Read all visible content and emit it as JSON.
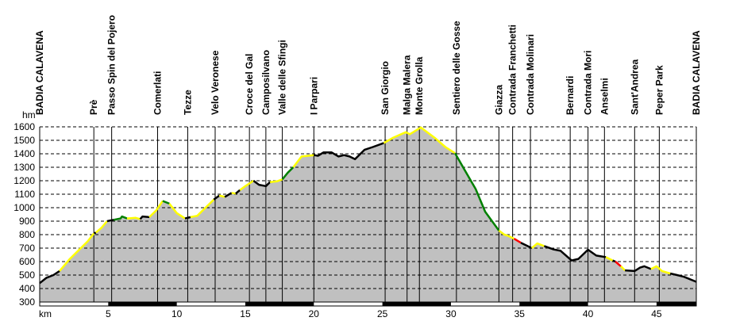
{
  "chart_data": {
    "type": "area",
    "title": "",
    "xlabel": "km",
    "ylabel": "hm",
    "xlim": [
      0,
      47.9
    ],
    "ylim": [
      300,
      1600
    ],
    "grid": true,
    "y_ticks": [
      300,
      400,
      500,
      600,
      700,
      800,
      900,
      1000,
      1100,
      1200,
      1300,
      1400,
      1500,
      1600
    ],
    "x_ticks": [
      5,
      10,
      15,
      20,
      25,
      30,
      35,
      40,
      45
    ],
    "scale_bar_black_ranges": [
      [
        5,
        10
      ],
      [
        15,
        20
      ],
      [
        25,
        30
      ],
      [
        35,
        40
      ],
      [
        45,
        47.9
      ]
    ],
    "colors": {
      "fill": "#c0c0c0",
      "yellow": "#ffff00",
      "green": "#008000",
      "black": "#000000",
      "red": "#ff0000"
    },
    "segments": [
      {
        "color": "black",
        "points": [
          [
            0,
            440
          ],
          [
            0.5,
            480
          ],
          [
            1.0,
            500
          ],
          [
            1.45,
            530
          ]
        ]
      },
      {
        "color": "yellow",
        "points": [
          [
            1.45,
            530
          ],
          [
            2.2,
            620
          ],
          [
            2.9,
            690
          ],
          [
            3.5,
            750
          ],
          [
            3.96,
            810
          ]
        ]
      },
      {
        "color": "black",
        "points": [
          [
            3.96,
            810
          ],
          [
            4.1,
            815
          ]
        ]
      },
      {
        "color": "yellow",
        "points": [
          [
            4.1,
            815
          ],
          [
            4.5,
            850
          ],
          [
            4.92,
            900
          ]
        ]
      },
      {
        "color": "black",
        "points": [
          [
            4.92,
            900
          ],
          [
            5.4,
            910
          ]
        ]
      },
      {
        "color": "green",
        "points": [
          [
            5.4,
            910
          ],
          [
            5.9,
            920
          ],
          [
            6.0,
            935
          ],
          [
            6.37,
            920
          ]
        ]
      },
      {
        "color": "yellow",
        "points": [
          [
            6.37,
            920
          ],
          [
            7.0,
            925
          ],
          [
            7.33,
            915
          ]
        ]
      },
      {
        "color": "black",
        "points": [
          [
            7.33,
            915
          ],
          [
            7.5,
            935
          ],
          [
            8.0,
            930
          ]
        ]
      },
      {
        "color": "yellow",
        "points": [
          [
            8.0,
            930
          ],
          [
            8.5,
            980
          ],
          [
            8.97,
            1050
          ]
        ]
      },
      {
        "color": "green",
        "points": [
          [
            8.97,
            1050
          ],
          [
            9.46,
            1030
          ]
        ]
      },
      {
        "color": "yellow",
        "points": [
          [
            9.46,
            1030
          ],
          [
            10.0,
            960
          ],
          [
            10.6,
            920
          ]
        ]
      },
      {
        "color": "black",
        "points": [
          [
            10.6,
            920
          ],
          [
            11.0,
            930
          ]
        ]
      },
      {
        "color": "yellow",
        "points": [
          [
            11.0,
            930
          ],
          [
            11.5,
            940
          ],
          [
            12.2,
            1010
          ],
          [
            12.7,
            1060
          ]
        ]
      },
      {
        "color": "black",
        "points": [
          [
            12.7,
            1060
          ],
          [
            13.1,
            1090
          ]
        ]
      },
      {
        "color": "yellow",
        "points": [
          [
            13.1,
            1090
          ],
          [
            13.5,
            1080
          ]
        ]
      },
      {
        "color": "black",
        "points": [
          [
            13.5,
            1080
          ],
          [
            14.0,
            1110
          ]
        ]
      },
      {
        "color": "yellow",
        "points": [
          [
            14.0,
            1110
          ],
          [
            14.3,
            1105
          ]
        ]
      },
      {
        "color": "black",
        "points": [
          [
            14.3,
            1105
          ],
          [
            14.6,
            1130
          ]
        ]
      },
      {
        "color": "yellow",
        "points": [
          [
            14.6,
            1130
          ],
          [
            15.0,
            1160
          ],
          [
            15.6,
            1200
          ]
        ]
      },
      {
        "color": "black",
        "points": [
          [
            15.6,
            1200
          ],
          [
            16.0,
            1170
          ],
          [
            16.5,
            1160
          ],
          [
            16.8,
            1190
          ]
        ]
      },
      {
        "color": "yellow",
        "points": [
          [
            16.8,
            1190
          ],
          [
            17.3,
            1195
          ],
          [
            17.7,
            1210
          ]
        ]
      },
      {
        "color": "green",
        "points": [
          [
            17.7,
            1210
          ],
          [
            18.1,
            1260
          ],
          [
            18.5,
            1300
          ]
        ]
      },
      {
        "color": "yellow",
        "points": [
          [
            18.5,
            1300
          ],
          [
            19.1,
            1380
          ],
          [
            20.0,
            1390
          ]
        ]
      },
      {
        "color": "black",
        "points": [
          [
            20.0,
            1390
          ],
          [
            20.3,
            1385
          ],
          [
            20.7,
            1410
          ],
          [
            21.3,
            1410
          ],
          [
            21.8,
            1380
          ],
          [
            22.2,
            1390
          ],
          [
            22.6,
            1380
          ],
          [
            23.0,
            1360
          ],
          [
            23.7,
            1430
          ],
          [
            24.3,
            1450
          ],
          [
            25.1,
            1480
          ]
        ]
      },
      {
        "color": "yellow",
        "points": [
          [
            25.1,
            1480
          ],
          [
            25.8,
            1520
          ],
          [
            26.7,
            1560
          ],
          [
            27.0,
            1545
          ],
          [
            27.8,
            1595
          ],
          [
            28.8,
            1520
          ],
          [
            29.6,
            1450
          ],
          [
            30.3,
            1405
          ]
        ]
      },
      {
        "color": "green",
        "points": [
          [
            30.3,
            1405
          ],
          [
            31.0,
            1280
          ],
          [
            31.8,
            1140
          ],
          [
            32.5,
            970
          ],
          [
            33.5,
            830
          ]
        ]
      },
      {
        "color": "yellow",
        "points": [
          [
            33.5,
            830
          ],
          [
            33.9,
            800
          ],
          [
            34.2,
            790
          ],
          [
            34.6,
            770
          ]
        ]
      },
      {
        "color": "red",
        "points": [
          [
            34.6,
            770
          ],
          [
            35.1,
            740
          ]
        ]
      },
      {
        "color": "black",
        "points": [
          [
            35.1,
            740
          ],
          [
            35.9,
            700
          ]
        ]
      },
      {
        "color": "yellow",
        "points": [
          [
            35.9,
            700
          ],
          [
            36.3,
            735
          ],
          [
            36.8,
            715
          ]
        ]
      },
      {
        "color": "black",
        "points": [
          [
            36.8,
            715
          ],
          [
            37.5,
            690
          ],
          [
            38.0,
            680
          ],
          [
            38.8,
            608
          ],
          [
            39.3,
            620
          ],
          [
            40.0,
            688
          ],
          [
            40.6,
            645
          ],
          [
            41.3,
            633
          ]
        ]
      },
      {
        "color": "yellow",
        "points": [
          [
            41.3,
            633
          ],
          [
            41.8,
            608
          ]
        ]
      },
      {
        "color": "black",
        "points": [
          [
            41.8,
            608
          ],
          [
            42.0,
            600
          ]
        ]
      },
      {
        "color": "red",
        "points": [
          [
            42.0,
            600
          ],
          [
            42.4,
            565
          ]
        ]
      },
      {
        "color": "yellow",
        "points": [
          [
            42.4,
            565
          ],
          [
            42.7,
            535
          ]
        ]
      },
      {
        "color": "black",
        "points": [
          [
            42.7,
            535
          ],
          [
            43.4,
            530
          ],
          [
            43.8,
            555
          ],
          [
            44.1,
            565
          ],
          [
            44.6,
            545
          ]
        ]
      },
      {
        "color": "yellow",
        "points": [
          [
            44.6,
            545
          ],
          [
            45.0,
            565
          ],
          [
            45.4,
            530
          ],
          [
            46.0,
            512
          ]
        ]
      },
      {
        "color": "black",
        "points": [
          [
            46.0,
            512
          ],
          [
            46.5,
            500
          ],
          [
            47.0,
            487
          ],
          [
            47.9,
            450
          ]
        ]
      }
    ],
    "places": [
      {
        "name": "BADIA CALAVENA",
        "km": 0
      },
      {
        "name": "Prè",
        "km": 3.95
      },
      {
        "name": "Passo Spin del Pojero",
        "km": 5.25
      },
      {
        "name": "Comerlati",
        "km": 8.6
      },
      {
        "name": "Tezze",
        "km": 10.8
      },
      {
        "name": "Velo Veronese",
        "km": 12.8
      },
      {
        "name": "Croce del Gal",
        "km": 15.3
      },
      {
        "name": "Camposilvano",
        "km": 16.5
      },
      {
        "name": "Valle delle Sfingi",
        "km": 17.7
      },
      {
        "name": "I Parpari",
        "km": 20.0
      },
      {
        "name": "San Giorgio",
        "km": 25.2
      },
      {
        "name": "Malga Malera",
        "km": 26.8
      },
      {
        "name": "Monte Grolla",
        "km": 27.7
      },
      {
        "name": "Sentiero delle Gosse",
        "km": 30.4
      },
      {
        "name": "Giazza",
        "km": 33.5
      },
      {
        "name": "Contrada Franchetti",
        "km": 34.5
      },
      {
        "name": "Contrada Molinari",
        "km": 35.8
      },
      {
        "name": "Bernardi",
        "km": 38.7
      },
      {
        "name": "Contrada Mori",
        "km": 40.0
      },
      {
        "name": "Anselmi",
        "km": 41.2
      },
      {
        "name": "Sant'Andrea",
        "km": 43.4
      },
      {
        "name": "Peper Park",
        "km": 45.2
      },
      {
        "name": "BADIA CALAVENA",
        "km": 47.9
      }
    ]
  }
}
